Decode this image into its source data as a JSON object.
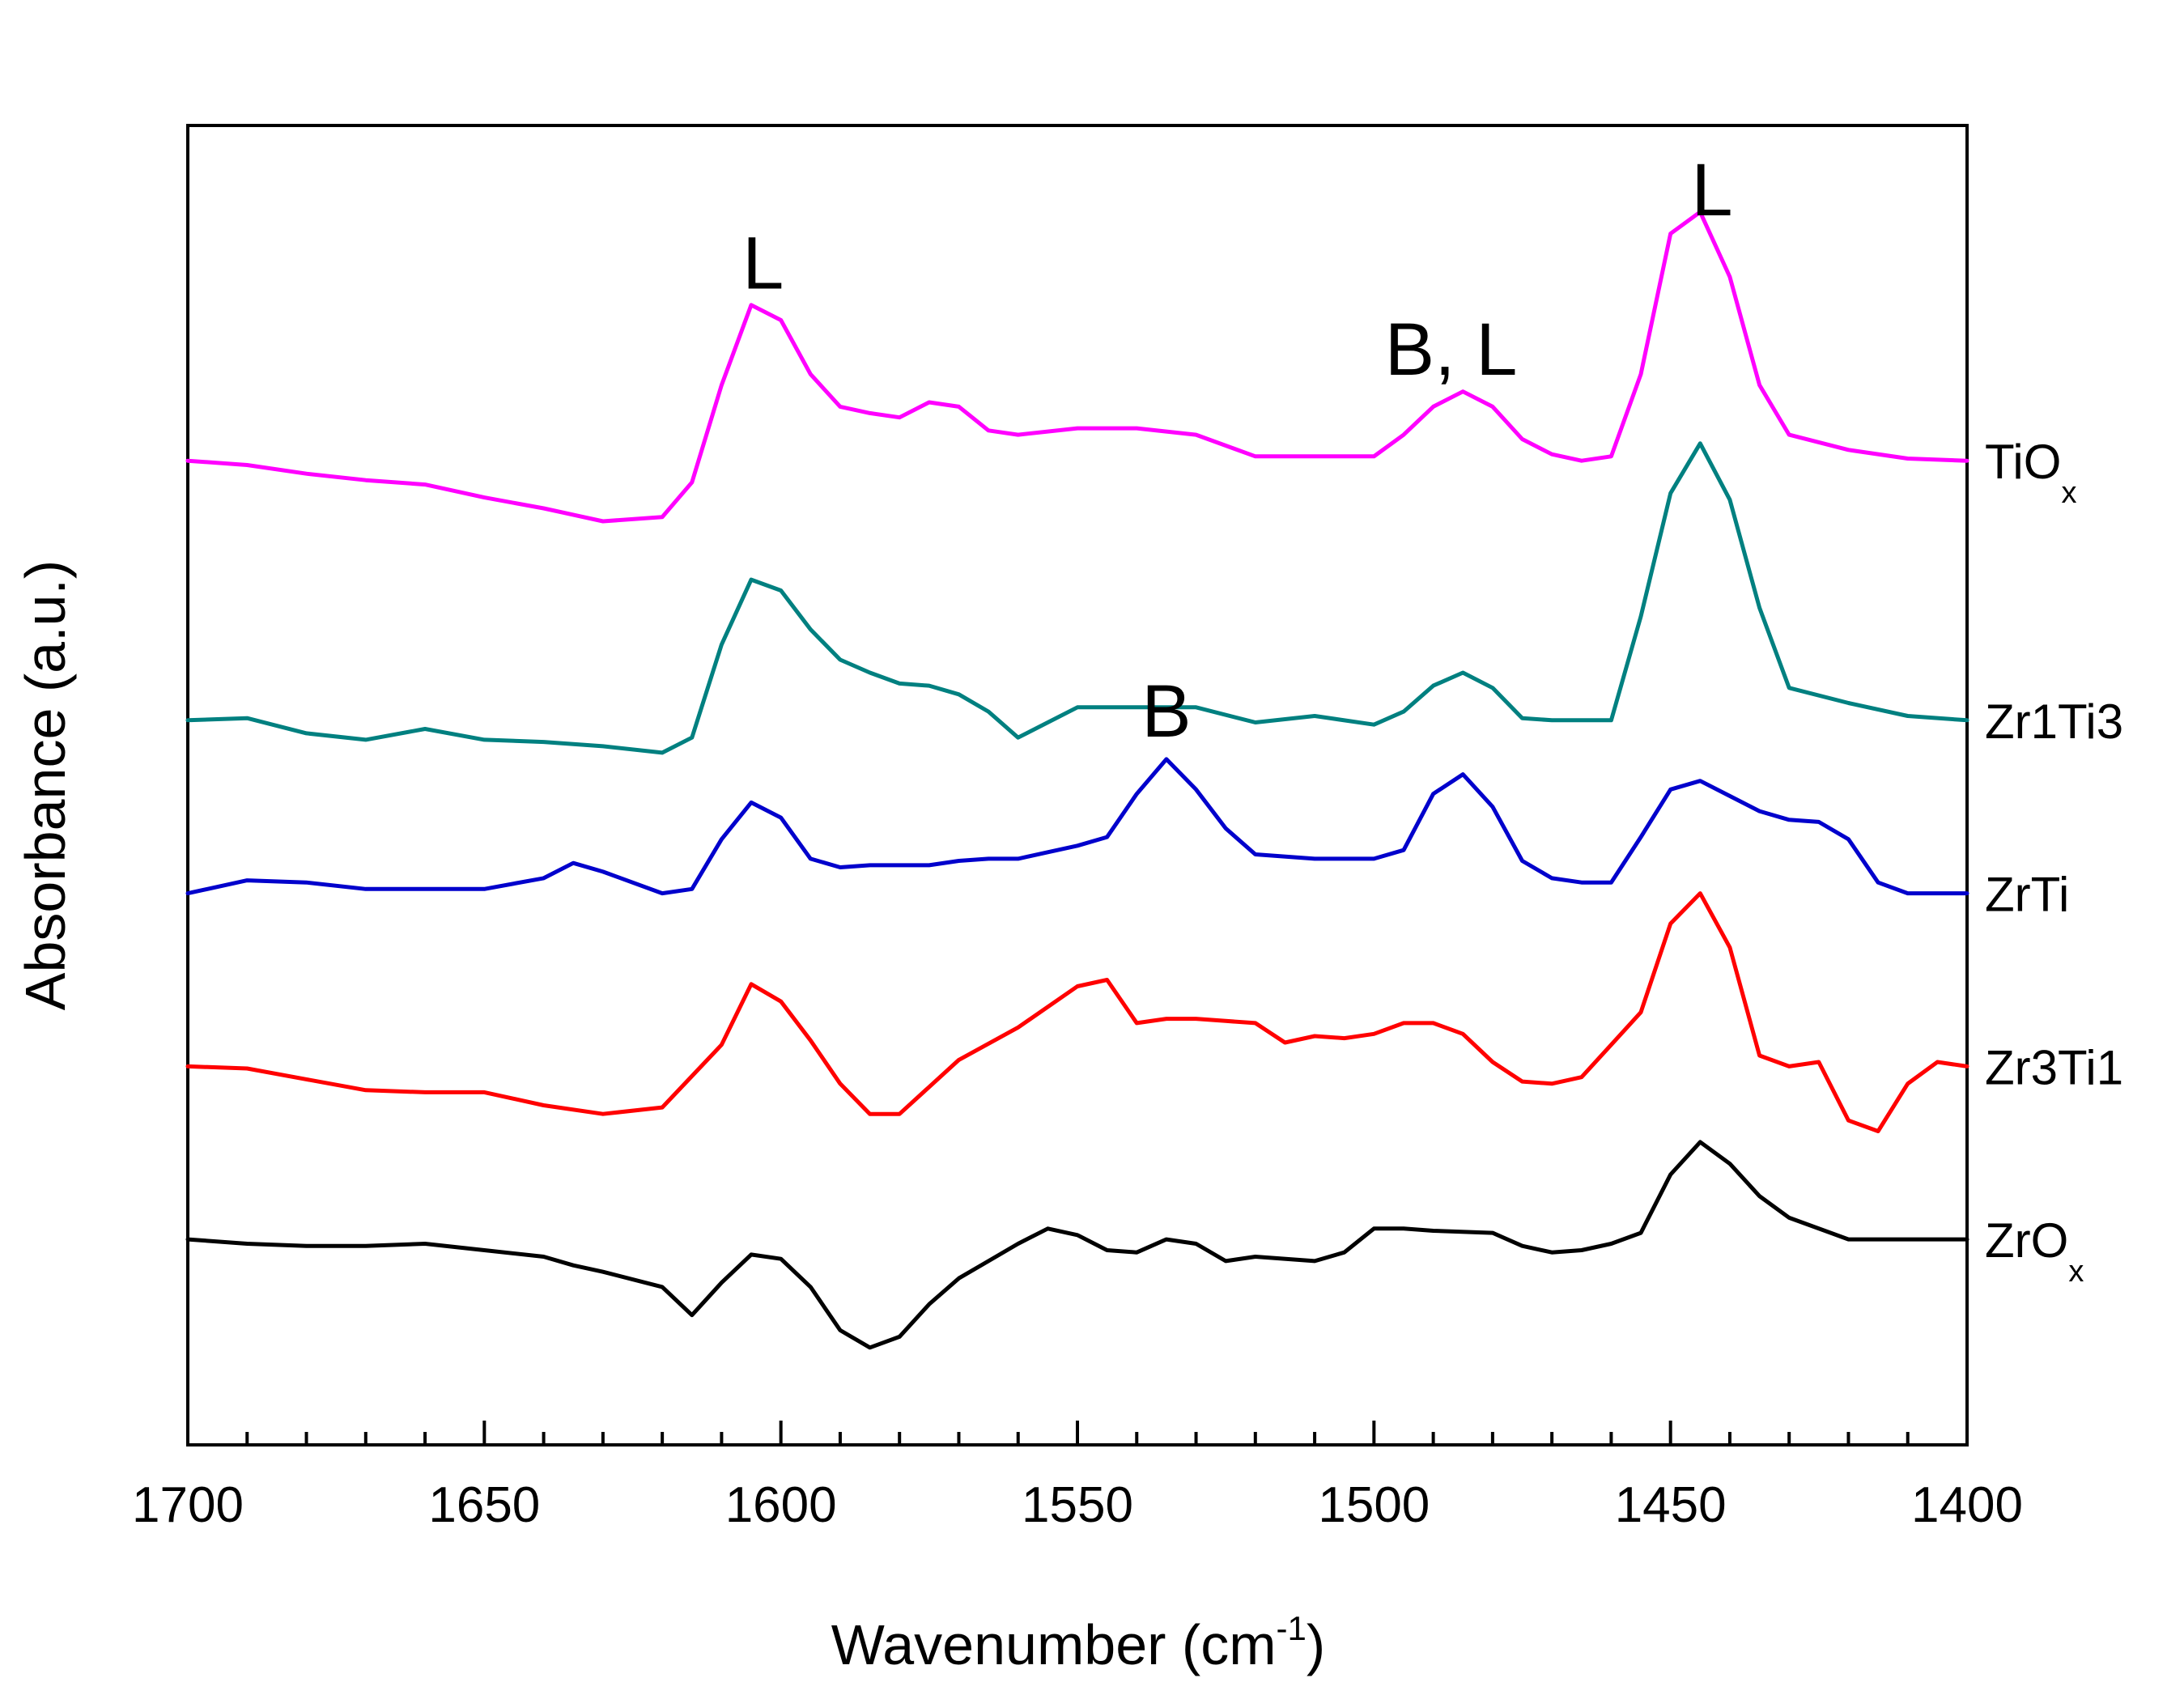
{
  "chart_data": {
    "type": "line",
    "title": "",
    "xlabel": "Wavenumber (cm",
    "xlabel_superscript": "-1",
    "xlabel_close": ")",
    "ylabel": "Absorbance (a.u.)",
    "xlim": [
      1700,
      1400
    ],
    "x_ticks": [
      1700,
      1650,
      1600,
      1550,
      1500,
      1450,
      1400
    ],
    "x_tick_labels": [
      "1700",
      "1650",
      "1600",
      "1550",
      "1500",
      "1450",
      "1400"
    ],
    "y_ticks_shown": false,
    "annotations": [
      {
        "text": "L",
        "x": 1603,
        "series": "TiOx"
      },
      {
        "text": "B, L",
        "x": 1487,
        "series": "TiOx"
      },
      {
        "text": "L",
        "x": 1443,
        "series": "TiOx"
      },
      {
        "text": "B",
        "x": 1535,
        "series": "ZrTi"
      }
    ],
    "series": [
      {
        "name": "TiOx",
        "label": "TiO",
        "label_sub": "x",
        "color": "#ff00ff",
        "offset": 4.0,
        "x": [
          1700,
          1690,
          1680,
          1670,
          1660,
          1650,
          1640,
          1630,
          1620,
          1615,
          1610,
          1605,
          1600,
          1595,
          1590,
          1585,
          1580,
          1575,
          1570,
          1565,
          1560,
          1550,
          1540,
          1530,
          1520,
          1510,
          1500,
          1495,
          1490,
          1485,
          1480,
          1475,
          1470,
          1465,
          1460,
          1455,
          1450,
          1445,
          1440,
          1435,
          1430,
          1420,
          1410,
          1400
        ],
        "y": [
          0.0,
          -0.02,
          -0.06,
          -0.09,
          -0.11,
          -0.17,
          -0.22,
          -0.28,
          -0.26,
          -0.1,
          0.35,
          0.72,
          0.65,
          0.4,
          0.25,
          0.22,
          0.2,
          0.27,
          0.25,
          0.14,
          0.12,
          0.15,
          0.15,
          0.12,
          0.02,
          0.02,
          0.02,
          0.12,
          0.25,
          0.32,
          0.25,
          0.1,
          0.03,
          0.0,
          0.02,
          0.4,
          1.05,
          1.15,
          0.85,
          0.35,
          0.12,
          0.05,
          0.01,
          0.0
        ]
      },
      {
        "name": "Zr1Ti3",
        "label": "Zr1Ti3",
        "color": "#008080",
        "offset": 2.8,
        "x": [
          1700,
          1690,
          1680,
          1670,
          1660,
          1650,
          1640,
          1630,
          1620,
          1615,
          1610,
          1605,
          1600,
          1595,
          1590,
          1585,
          1580,
          1575,
          1570,
          1565,
          1560,
          1550,
          1540,
          1530,
          1520,
          1510,
          1500,
          1495,
          1490,
          1485,
          1480,
          1475,
          1470,
          1465,
          1460,
          1455,
          1450,
          1445,
          1440,
          1435,
          1430,
          1420,
          1410,
          1400
        ],
        "y": [
          0.0,
          0.01,
          -0.06,
          -0.09,
          -0.04,
          -0.09,
          -0.1,
          -0.12,
          -0.15,
          -0.08,
          0.35,
          0.65,
          0.6,
          0.42,
          0.28,
          0.22,
          0.17,
          0.16,
          0.12,
          0.04,
          -0.08,
          0.06,
          0.06,
          0.06,
          -0.01,
          0.02,
          -0.02,
          0.04,
          0.16,
          0.22,
          0.15,
          0.01,
          0.0,
          0.0,
          0.0,
          0.48,
          1.05,
          1.28,
          1.02,
          0.52,
          0.15,
          0.08,
          0.02,
          0.0
        ]
      },
      {
        "name": "ZrTi",
        "label": "ZrTi",
        "color": "#0000cc",
        "offset": 2.0,
        "x": [
          1700,
          1690,
          1680,
          1670,
          1660,
          1650,
          1640,
          1635,
          1630,
          1620,
          1615,
          1610,
          1605,
          1600,
          1595,
          1590,
          1585,
          1580,
          1575,
          1570,
          1565,
          1560,
          1555,
          1550,
          1545,
          1540,
          1535,
          1530,
          1525,
          1520,
          1510,
          1500,
          1495,
          1490,
          1485,
          1480,
          1475,
          1470,
          1465,
          1460,
          1455,
          1450,
          1445,
          1440,
          1435,
          1430,
          1425,
          1420,
          1415,
          1410,
          1400
        ],
        "y": [
          0.0,
          0.06,
          0.05,
          0.02,
          0.02,
          0.02,
          0.07,
          0.14,
          0.1,
          0.0,
          0.02,
          0.25,
          0.42,
          0.35,
          0.16,
          0.12,
          0.13,
          0.13,
          0.13,
          0.15,
          0.16,
          0.16,
          0.19,
          0.22,
          0.26,
          0.46,
          0.62,
          0.48,
          0.3,
          0.18,
          0.16,
          0.16,
          0.2,
          0.46,
          0.55,
          0.4,
          0.15,
          0.07,
          0.05,
          0.05,
          0.26,
          0.48,
          0.52,
          0.45,
          0.38,
          0.34,
          0.33,
          0.25,
          0.05,
          0.0,
          0.0
        ]
      },
      {
        "name": "Zr3Ti1",
        "label": "Zr3Ti1",
        "color": "#ff0000",
        "offset": 1.2,
        "x": [
          1700,
          1690,
          1680,
          1670,
          1660,
          1650,
          1640,
          1630,
          1620,
          1610,
          1605,
          1600,
          1595,
          1590,
          1585,
          1580,
          1570,
          1560,
          1550,
          1545,
          1540,
          1535,
          1530,
          1525,
          1520,
          1515,
          1510,
          1505,
          1500,
          1495,
          1490,
          1485,
          1480,
          1475,
          1470,
          1465,
          1460,
          1455,
          1450,
          1445,
          1440,
          1435,
          1430,
          1425,
          1420,
          1415,
          1410,
          1405,
          1400
        ],
        "y": [
          0.0,
          -0.01,
          -0.06,
          -0.11,
          -0.12,
          -0.12,
          -0.18,
          -0.22,
          -0.19,
          0.1,
          0.38,
          0.3,
          0.12,
          -0.08,
          -0.22,
          -0.22,
          0.03,
          0.18,
          0.37,
          0.4,
          0.2,
          0.22,
          0.22,
          0.21,
          0.2,
          0.11,
          0.14,
          0.13,
          0.15,
          0.2,
          0.2,
          0.15,
          0.02,
          -0.07,
          -0.08,
          -0.05,
          0.1,
          0.25,
          0.66,
          0.8,
          0.55,
          0.05,
          0.0,
          0.02,
          -0.25,
          -0.3,
          -0.08,
          0.02,
          0.0
        ]
      },
      {
        "name": "ZrOx",
        "label": "ZrO",
        "label_sub": "x",
        "color": "#000000",
        "offset": 0.4,
        "x": [
          1700,
          1690,
          1680,
          1670,
          1660,
          1650,
          1640,
          1635,
          1630,
          1620,
          1615,
          1610,
          1605,
          1600,
          1595,
          1590,
          1585,
          1580,
          1575,
          1570,
          1565,
          1560,
          1555,
          1550,
          1545,
          1540,
          1535,
          1530,
          1525,
          1520,
          1510,
          1505,
          1500,
          1495,
          1490,
          1480,
          1475,
          1470,
          1465,
          1460,
          1455,
          1450,
          1445,
          1440,
          1435,
          1430,
          1420,
          1410,
          1400
        ],
        "y": [
          0.0,
          -0.02,
          -0.03,
          -0.03,
          -0.02,
          -0.05,
          -0.08,
          -0.12,
          -0.15,
          -0.22,
          -0.35,
          -0.2,
          -0.07,
          -0.09,
          -0.22,
          -0.42,
          -0.5,
          -0.45,
          -0.3,
          -0.18,
          -0.1,
          -0.02,
          0.05,
          0.02,
          -0.05,
          -0.06,
          0.0,
          -0.02,
          -0.1,
          -0.08,
          -0.1,
          -0.06,
          0.05,
          0.05,
          0.04,
          0.03,
          -0.03,
          -0.06,
          -0.05,
          -0.02,
          0.03,
          0.3,
          0.45,
          0.35,
          0.2,
          0.1,
          0.0,
          0.0,
          0.0
        ]
      }
    ]
  }
}
